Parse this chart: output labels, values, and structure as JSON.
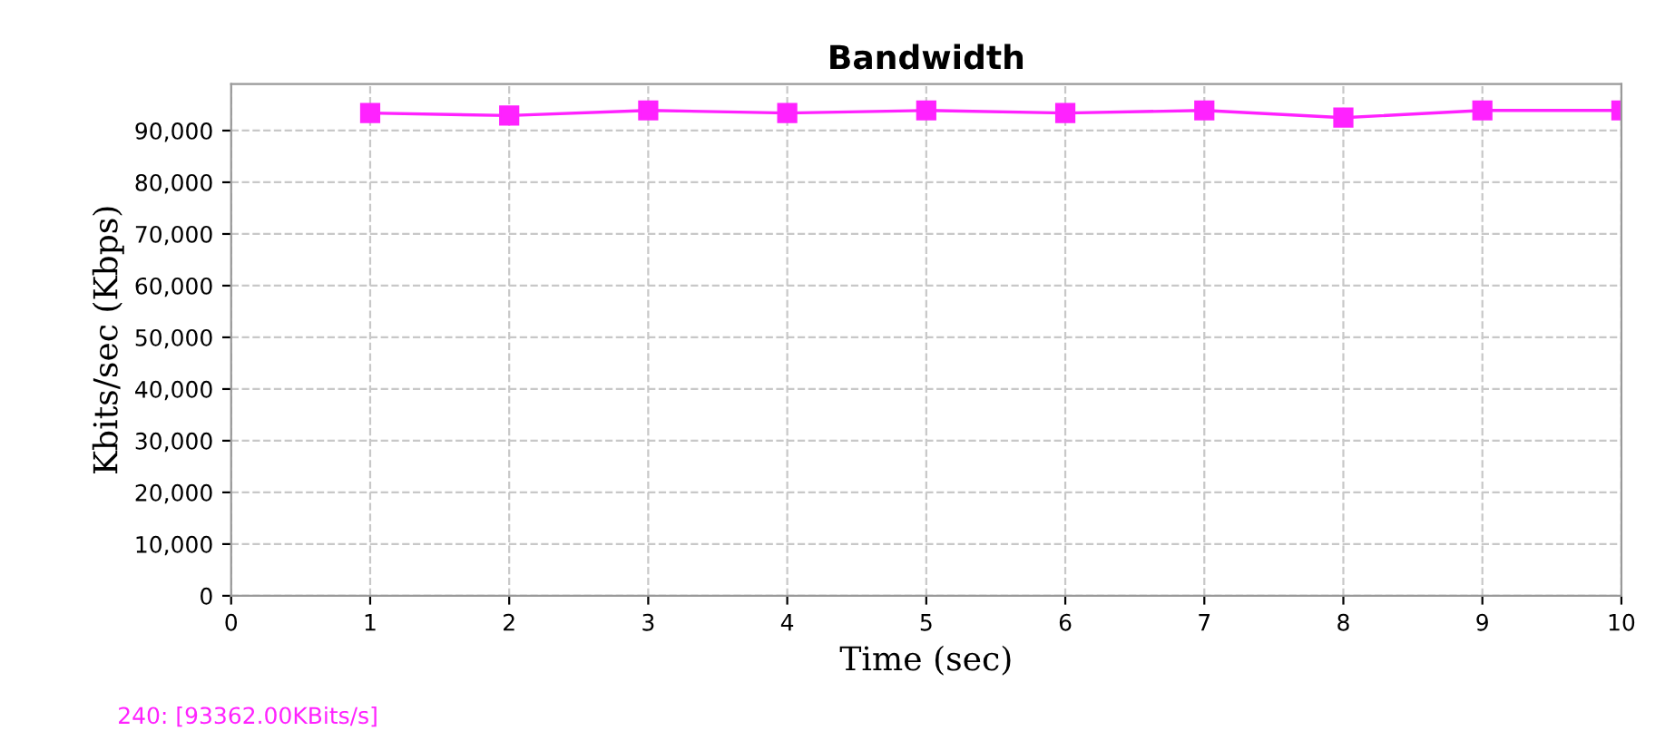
{
  "chart_data": {
    "type": "line",
    "title": "Bandwidth",
    "xlabel": "Time (sec)",
    "ylabel": "Kbits/sec (Kbps)",
    "x": [
      1,
      2,
      3,
      4,
      5,
      6,
      7,
      8,
      9,
      10
    ],
    "series": [
      {
        "color": "#ff22ff",
        "values": [
          93400,
          92900,
          93900,
          93400,
          93900,
          93400,
          93900,
          92500,
          93900,
          93900
        ]
      }
    ],
    "xlim": [
      0,
      10
    ],
    "xticks": [
      0,
      1,
      2,
      3,
      4,
      5,
      6,
      7,
      8,
      9,
      10
    ],
    "ylim": [
      0,
      99000
    ],
    "yticks": [
      {
        "value": 0,
        "label": "0"
      },
      {
        "value": 10000,
        "label": "10,000"
      },
      {
        "value": 20000,
        "label": "20,000"
      },
      {
        "value": 30000,
        "label": "30,000"
      },
      {
        "value": 40000,
        "label": "40,000"
      },
      {
        "value": 50000,
        "label": "50,000"
      },
      {
        "value": 60000,
        "label": "60,000"
      },
      {
        "value": 70000,
        "label": "70,000"
      },
      {
        "value": 80000,
        "label": "80,000"
      },
      {
        "value": 90000,
        "label": "90,000"
      }
    ],
    "grid": true,
    "marker": "square",
    "line_style": "solid",
    "legend": false,
    "annotations": [
      "240: [93362.00KBits/s]"
    ]
  }
}
